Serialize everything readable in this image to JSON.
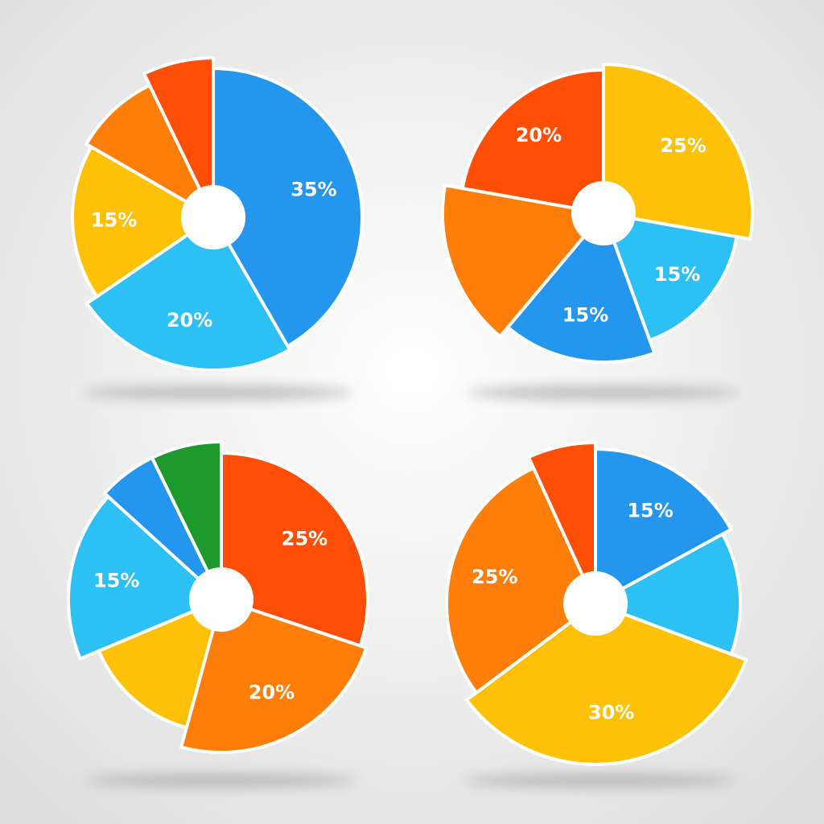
{
  "chart_data": [
    {
      "type": "pie",
      "values": [
        35,
        20,
        15,
        8,
        6
      ],
      "value_labels": [
        "35%",
        "20%",
        "15%",
        null,
        null
      ],
      "colors": [
        "#2496ee",
        "#2cc0f4",
        "#ffc107",
        "#ff7e0a",
        "#ff4f06"
      ]
    },
    {
      "type": "pie",
      "values": [
        25,
        15,
        15,
        15,
        20
      ],
      "value_labels": [
        "25%",
        "15%",
        "15%",
        null,
        "20%"
      ],
      "colors": [
        "#ffc107",
        "#2cc0f4",
        "#2496ee",
        "#ff7e0a",
        "#ff4f06"
      ]
    },
    {
      "type": "pie",
      "values": [
        25,
        20,
        12,
        15,
        5,
        6
      ],
      "value_labels": [
        "25%",
        "20%",
        null,
        "15%",
        null,
        null
      ],
      "colors": [
        "#ff4f06",
        "#ff7e0a",
        "#ffc107",
        "#2cc0f4",
        "#2496ee",
        "#1e9a2c"
      ]
    },
    {
      "type": "pie",
      "values": [
        15,
        12,
        30,
        25,
        6
      ],
      "value_labels": [
        "15%",
        null,
        "30%",
        "25%",
        null
      ],
      "colors": [
        "#2496ee",
        "#2cc0f4",
        "#ffc107",
        "#ff7e0a",
        "#ff4f06"
      ]
    }
  ]
}
